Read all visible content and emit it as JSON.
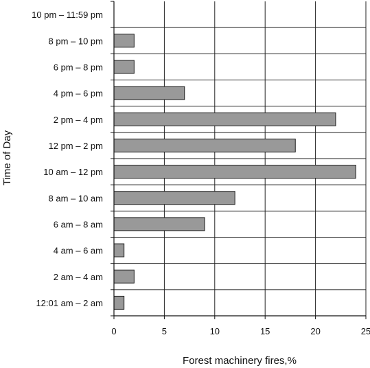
{
  "chart_data": {
    "type": "bar",
    "orientation": "horizontal",
    "title": "",
    "xlabel": "Forest machinery fires,%",
    "ylabel": "Time of Day",
    "xlim": [
      0,
      25
    ],
    "xticks": [
      0,
      5,
      10,
      15,
      20,
      25
    ],
    "grid": true,
    "bar_color": "#999999",
    "categories": [
      "10 pm – 11:59 pm",
      "8 pm – 10 pm",
      "6 pm – 8 pm",
      "4 pm – 6 pm",
      "2 pm – 4 pm",
      "12 pm – 2 pm",
      "10 am – 12 pm",
      "8 am – 10 am",
      "6 am – 8 am",
      "4 am – 6 am",
      "2 am – 4 am",
      "12:01 am – 2 am"
    ],
    "values": [
      0,
      2,
      2,
      7,
      22,
      18,
      24,
      12,
      9,
      1,
      2,
      1
    ]
  }
}
